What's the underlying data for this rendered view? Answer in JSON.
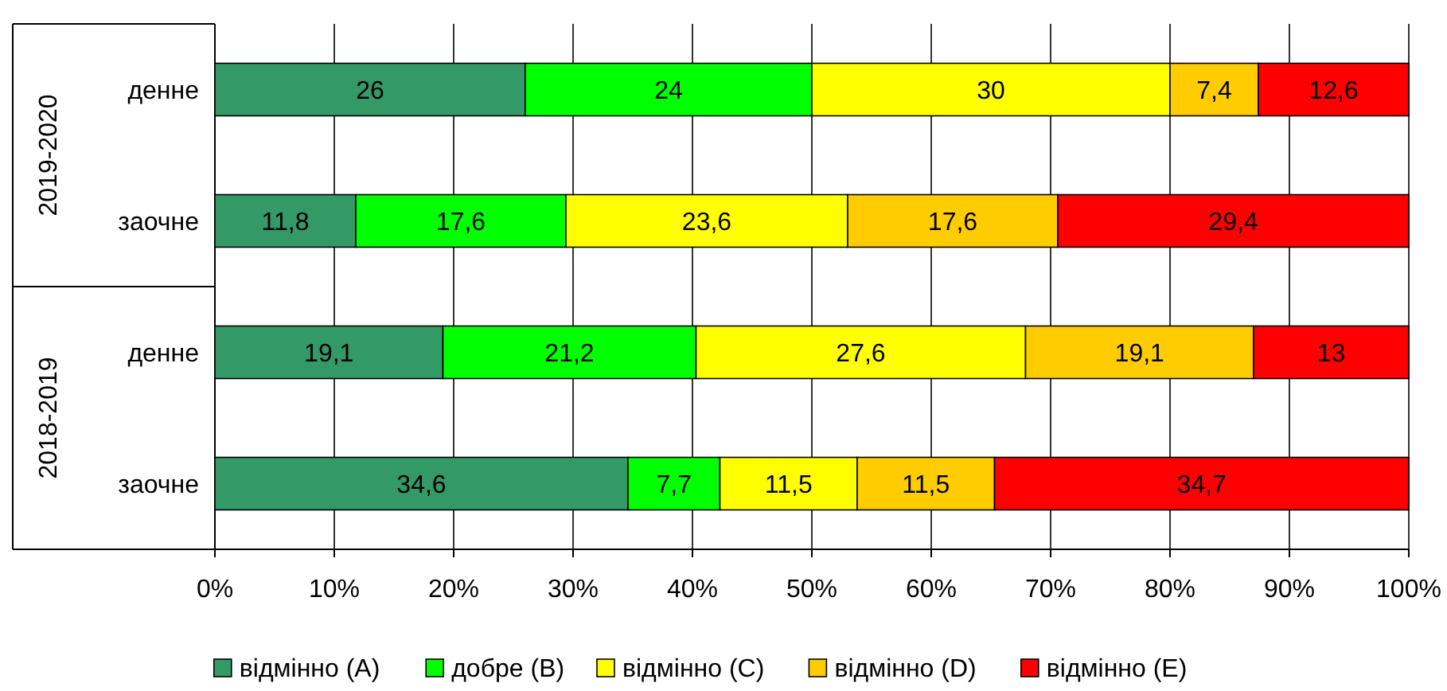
{
  "chart_data": {
    "type": "bar",
    "orientation": "horizontal",
    "stacked": true,
    "categories": [
      "денне",
      "заочне",
      "денне",
      "заочне"
    ],
    "annotations": [
      "2019-2020",
      "2018-2019"
    ],
    "series": [
      {
        "name": "відмінно (A)",
        "color": "#339966",
        "values": [
          26,
          11.8,
          19.1,
          34.6
        ],
        "value_labels": [
          "26",
          "11,8",
          "19,1",
          "34,6"
        ]
      },
      {
        "name": "добре (B)",
        "color": "#00ff00",
        "values": [
          24,
          17.6,
          21.2,
          7.7
        ],
        "value_labels": [
          "24",
          "17,6",
          "21,2",
          "7,7"
        ]
      },
      {
        "name": "відмінно (C)",
        "color": "#ffff00",
        "values": [
          30,
          23.6,
          27.6,
          11.5
        ],
        "value_labels": [
          "30",
          "23,6",
          "27,6",
          "11,5"
        ]
      },
      {
        "name": "відмінно (D)",
        "color": "#ffcc00",
        "values": [
          7.4,
          17.6,
          19.1,
          11.5
        ],
        "value_labels": [
          "7,4",
          "17,6",
          "19,1",
          "11,5"
        ]
      },
      {
        "name": "відмінно (E)",
        "color": "#ff0000",
        "values": [
          12.6,
          29.4,
          13,
          34.7
        ],
        "value_labels": [
          "12,6",
          "29,4",
          "13",
          "34,7"
        ]
      }
    ],
    "xlim": [
      0,
      100
    ],
    "xticks": [
      {
        "value": 0,
        "label": "0%"
      },
      {
        "value": 10,
        "label": "10%"
      },
      {
        "value": 20,
        "label": "20%"
      },
      {
        "value": 30,
        "label": "30%"
      },
      {
        "value": 40,
        "label": "40%"
      },
      {
        "value": 50,
        "label": "50%"
      },
      {
        "value": 60,
        "label": "60%"
      },
      {
        "value": 70,
        "label": "70%"
      },
      {
        "value": 80,
        "label": "80%"
      },
      {
        "value": 90,
        "label": "90%"
      },
      {
        "value": 100,
        "label": "100%"
      }
    ],
    "grid": "x",
    "legend": "bottom"
  }
}
